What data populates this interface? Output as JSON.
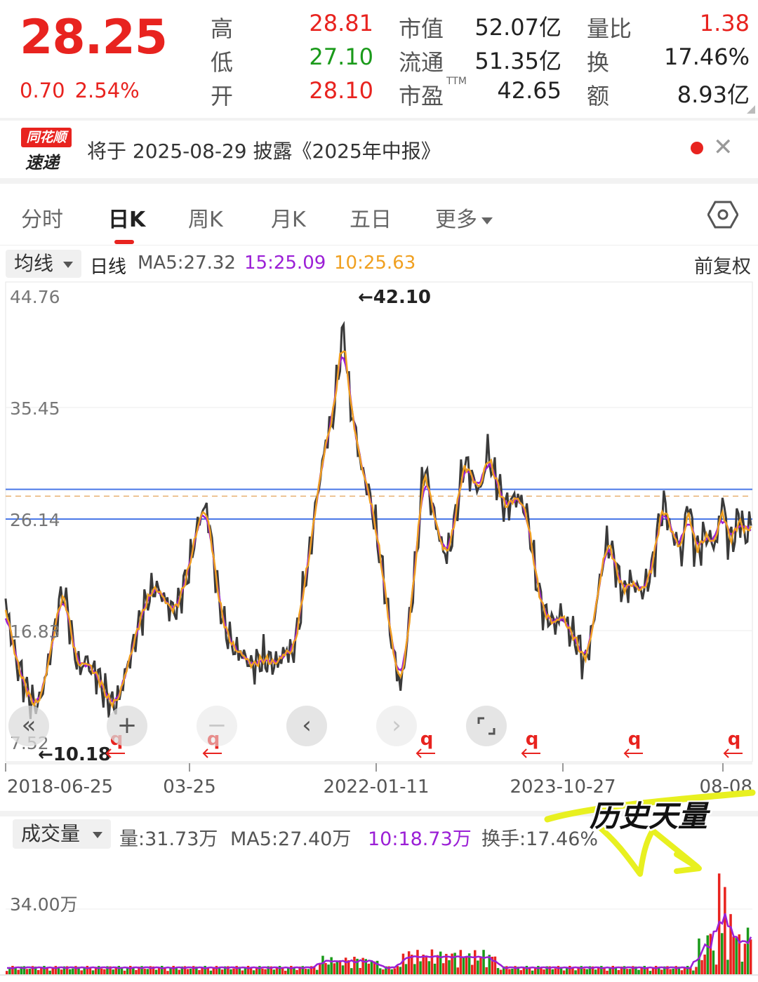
{
  "quote": {
    "price": "28.25",
    "change": "0.70",
    "change_pct": "2.54%",
    "high_label": "高",
    "high": "28.81",
    "low_label": "低",
    "low": "27.10",
    "open_label": "开",
    "open": "28.10",
    "mktcap_label": "市值",
    "mktcap": "52.07亿",
    "float_label": "流通",
    "float": "51.35亿",
    "pe_label": "市盈",
    "pe_sup": "TTM",
    "pe": "42.65",
    "volratio_label": "量比",
    "volratio": "1.38",
    "turnover_label": "换",
    "turnover": "17.46%",
    "amount_label": "额",
    "amount": "8.93亿",
    "colors": {
      "up": "#e8231f",
      "down": "#1a9a1a"
    }
  },
  "notice": {
    "logo_top": "同花顺",
    "logo_bottom": "速递",
    "text": "将于 2025-08-29 披露《2025年中报》",
    "close_icon": "close-icon"
  },
  "tabs": [
    {
      "label": "分时",
      "active": false
    },
    {
      "label": "日K",
      "active": true
    },
    {
      "label": "周K",
      "active": false
    },
    {
      "label": "月K",
      "active": false
    },
    {
      "label": "五日",
      "active": false
    },
    {
      "label": "更多",
      "active": false
    }
  ],
  "ma_row": {
    "selector": "均线",
    "line_type": "日线",
    "ma5": "MA5:27.32",
    "ma15": "15:25.09",
    "ma10": "10:25.63",
    "fuquan": "前复权",
    "colors": {
      "ma5": "#555555",
      "ma15": "#9b1fd6",
      "ma10": "#f0a020"
    }
  },
  "chart_data": {
    "type": "line",
    "y_ticks": [
      "44.76",
      "35.45",
      "26.14",
      "16.83",
      "7.52"
    ],
    "ylim": [
      7.52,
      44.76
    ],
    "x_ticks": [
      "2018-06-25",
      "03-25",
      "2022-01-11",
      "2023-10-27",
      "08-08"
    ],
    "max_label": "←42.10",
    "min_label": "←10.18",
    "max_value": 42.1,
    "min_value": 10.18,
    "hlines": [
      28.62,
      26.14
    ],
    "ref_line": 28.05,
    "series_close": [
      19,
      16.5,
      14,
      12.8,
      11.5,
      10.5,
      11,
      13,
      15.5,
      18,
      20.3,
      18,
      15,
      13.5,
      14.5,
      13.5,
      13.2,
      12,
      11,
      10.6,
      11.5,
      13.5,
      15,
      17,
      18.5,
      19.7,
      20.5,
      20,
      19.2,
      18.5,
      18.8,
      20.5,
      22,
      24.5,
      26.5,
      27.2,
      24,
      20,
      17.5,
      16.2,
      15.2,
      15,
      14.5,
      13.8,
      14.2,
      14.5,
      14.3,
      14,
      14.5,
      15.2,
      14.8,
      17,
      20.5,
      23,
      27,
      30,
      33,
      34.2,
      38.5,
      42.1,
      36,
      33.5,
      30.5,
      29,
      27,
      24,
      21,
      17,
      14,
      12,
      16,
      20,
      25,
      31,
      28,
      26,
      24,
      23,
      25,
      28,
      31,
      30,
      29,
      28.5,
      32,
      30,
      29,
      27,
      27.5,
      28,
      27.5,
      26.5,
      23,
      20,
      18.2,
      17.8,
      17.2,
      18.5,
      17,
      16.5,
      15.5,
      14,
      16,
      19,
      22,
      24.5,
      23,
      21,
      20,
      21,
      20.5,
      20,
      21,
      22.5,
      26,
      27.5,
      25,
      24.5,
      23,
      28.2,
      24,
      23.5,
      25,
      24.3,
      24,
      28,
      24.3,
      24.5,
      26.7,
      24.5,
      26
    ],
    "volume_peak": 30,
    "vol_label": "34.00万"
  },
  "controls": {
    "scroll_left": "«",
    "zoom_in": "+",
    "zoom_out": "−",
    "prev": "‹",
    "next": "›",
    "fullscreen": "fullscreen-icon"
  },
  "markers": [
    "q",
    "q",
    "q",
    "q",
    "q",
    "q"
  ],
  "volume_row": {
    "selector": "成交量",
    "vol": "量:31.73万",
    "ma5": "MA5:27.40万",
    "ma10": "10:18.73万",
    "turnover": "换手:17.46%"
  },
  "annotation": {
    "text": "历史天量",
    "color": "#e8f020"
  }
}
